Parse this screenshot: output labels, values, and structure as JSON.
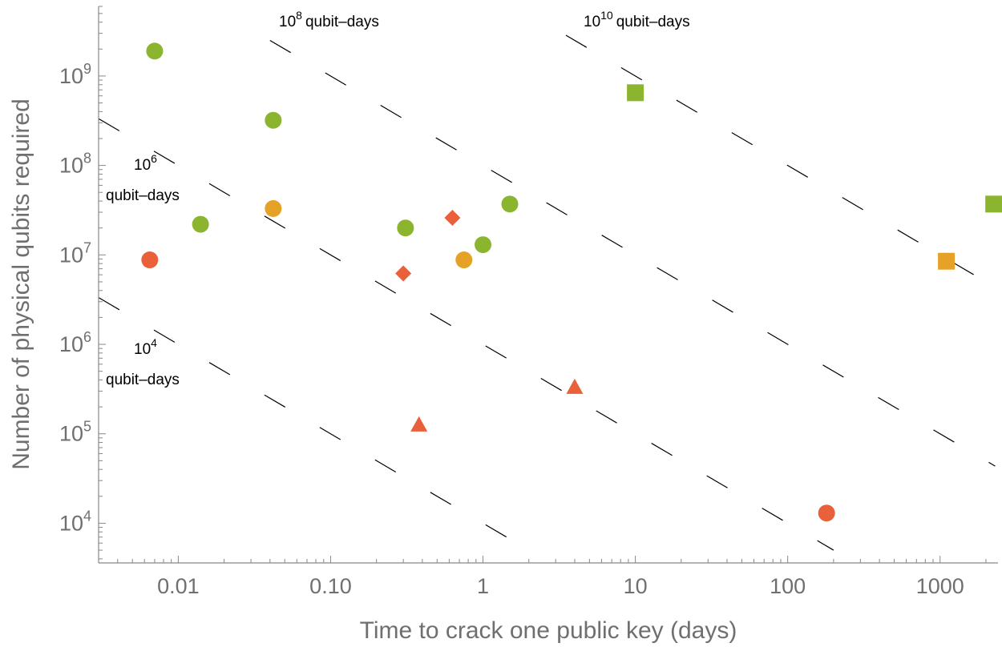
{
  "chart_data": {
    "type": "scatter",
    "xlabel": "Time to crack one public key (days)",
    "ylabel": "Number of physical qubits required",
    "x_scale": "log",
    "y_scale": "log",
    "xlim": [
      0.003,
      2400
    ],
    "ylim": [
      3600,
      6000000000
    ],
    "x_ticks": [
      {
        "value": 0.01,
        "label": "0.01"
      },
      {
        "value": 0.1,
        "label": "0.10"
      },
      {
        "value": 1,
        "label": "1"
      },
      {
        "value": 10,
        "label": "10"
      },
      {
        "value": 100,
        "label": "100"
      },
      {
        "value": 1000,
        "label": "1000"
      }
    ],
    "y_ticks": [
      {
        "value": 10000,
        "base": "10",
        "exp": "4"
      },
      {
        "value": 100000,
        "base": "10",
        "exp": "5"
      },
      {
        "value": 1000000,
        "base": "10",
        "exp": "6"
      },
      {
        "value": 10000000,
        "base": "10",
        "exp": "7"
      },
      {
        "value": 100000000,
        "base": "10",
        "exp": "8"
      },
      {
        "value": 1000000000,
        "base": "10",
        "exp": "9"
      }
    ],
    "grid": false,
    "legend": "none",
    "isolines": [
      {
        "qubit_days": 10000,
        "label_base": "10",
        "label_exp": "4",
        "label_suffix": "qubit–days",
        "x_range": [
          0.003,
          2.2
        ]
      },
      {
        "qubit_days": 1000000,
        "label_base": "10",
        "label_exp": "6",
        "label_suffix": "qubit–days",
        "x_range": [
          0.003,
          200
        ]
      },
      {
        "qubit_days": 100000000,
        "label_base": "10",
        "label_exp": "8",
        "label_suffix": "qubit–days",
        "x_range": [
          0.04,
          2300
        ]
      },
      {
        "qubit_days": 10000000000,
        "label_base": "10",
        "label_exp": "10",
        "label_suffix": "qubit–days",
        "x_range": [
          3.5,
          2300
        ]
      }
    ],
    "colors": {
      "green": "#8cb52f",
      "orange": "#e6a127",
      "red": "#e9603a"
    },
    "points": [
      {
        "x": 0.007,
        "y": 1900000000,
        "shape": "circle",
        "color": "green"
      },
      {
        "x": 0.042,
        "y": 320000000,
        "shape": "circle",
        "color": "green"
      },
      {
        "x": 0.014,
        "y": 22000000,
        "shape": "circle",
        "color": "green"
      },
      {
        "x": 0.31,
        "y": 20000000,
        "shape": "circle",
        "color": "green"
      },
      {
        "x": 1.5,
        "y": 37000000,
        "shape": "circle",
        "color": "green"
      },
      {
        "x": 1.0,
        "y": 13000000,
        "shape": "circle",
        "color": "green"
      },
      {
        "x": 10,
        "y": 650000000,
        "shape": "square",
        "color": "green"
      },
      {
        "x": 2250,
        "y": 37000000,
        "shape": "square",
        "color": "green"
      },
      {
        "x": 0.042,
        "y": 33000000,
        "shape": "circle",
        "color": "orange"
      },
      {
        "x": 0.75,
        "y": 8800000,
        "shape": "circle",
        "color": "orange"
      },
      {
        "x": 1100,
        "y": 8500000,
        "shape": "square",
        "color": "orange"
      },
      {
        "x": 0.0065,
        "y": 8800000,
        "shape": "circle",
        "color": "red"
      },
      {
        "x": 0.63,
        "y": 26000000,
        "shape": "diamond",
        "color": "red"
      },
      {
        "x": 0.3,
        "y": 6200000,
        "shape": "diamond",
        "color": "red"
      },
      {
        "x": 0.38,
        "y": 125000,
        "shape": "triangle",
        "color": "red"
      },
      {
        "x": 4,
        "y": 330000,
        "shape": "triangle",
        "color": "red"
      },
      {
        "x": 180,
        "y": 13000,
        "shape": "circle",
        "color": "red"
      }
    ]
  }
}
